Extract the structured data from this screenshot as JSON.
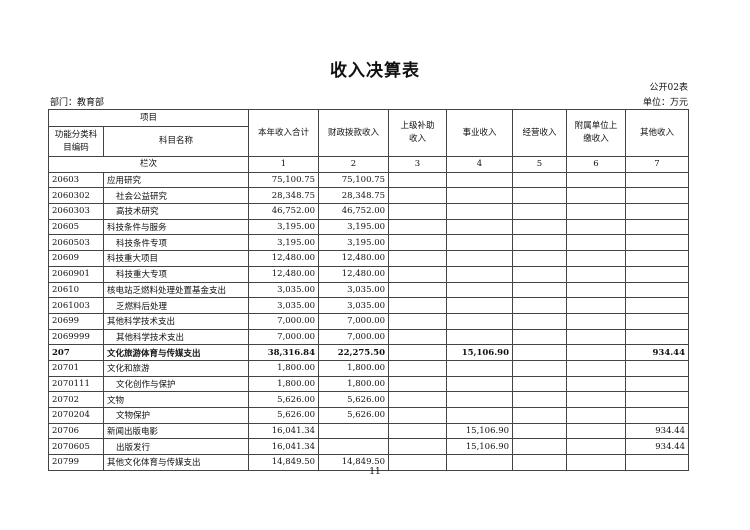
{
  "title": "收入决算表",
  "form_no": "公开02表",
  "department": "部门：教育部",
  "unit": "单位：万元",
  "header": {
    "project": "项目",
    "code": "功能分类科目编码",
    "name": "科目名称",
    "col_index": "栏次",
    "cols": [
      "本年收入合计",
      "财政拨款收入",
      "上级补助收入",
      "事业收入",
      "经营收入",
      "附属单位上缴收入",
      "其他收入"
    ],
    "nums": [
      "1",
      "2",
      "3",
      "4",
      "5",
      "6",
      "7"
    ]
  },
  "rows": [
    {
      "code": "20603",
      "name": "应用研究",
      "v": [
        "75,100.75",
        "75,100.75",
        "",
        "",
        "",
        "",
        ""
      ]
    },
    {
      "code": "2060302",
      "name": "社会公益研究",
      "indent": true,
      "v": [
        "28,348.75",
        "28,348.75",
        "",
        "",
        "",
        "",
        ""
      ]
    },
    {
      "code": "2060303",
      "name": "高技术研究",
      "indent": true,
      "v": [
        "46,752.00",
        "46,752.00",
        "",
        "",
        "",
        "",
        ""
      ]
    },
    {
      "code": "20605",
      "name": "科技条件与服务",
      "v": [
        "3,195.00",
        "3,195.00",
        "",
        "",
        "",
        "",
        ""
      ]
    },
    {
      "code": "2060503",
      "name": "科技条件专项",
      "indent": true,
      "v": [
        "3,195.00",
        "3,195.00",
        "",
        "",
        "",
        "",
        ""
      ]
    },
    {
      "code": "20609",
      "name": "科技重大项目",
      "v": [
        "12,480.00",
        "12,480.00",
        "",
        "",
        "",
        "",
        ""
      ]
    },
    {
      "code": "2060901",
      "name": "科技重大专项",
      "indent": true,
      "v": [
        "12,480.00",
        "12,480.00",
        "",
        "",
        "",
        "",
        ""
      ]
    },
    {
      "code": "20610",
      "name": "核电站乏燃料处理处置基金支出",
      "v": [
        "3,035.00",
        "3,035.00",
        "",
        "",
        "",
        "",
        ""
      ]
    },
    {
      "code": "2061003",
      "name": "乏燃料后处理",
      "indent": true,
      "v": [
        "3,035.00",
        "3,035.00",
        "",
        "",
        "",
        "",
        ""
      ]
    },
    {
      "code": "20699",
      "name": "其他科学技术支出",
      "v": [
        "7,000.00",
        "7,000.00",
        "",
        "",
        "",
        "",
        ""
      ]
    },
    {
      "code": "2069999",
      "name": "其他科学技术支出",
      "indent": true,
      "v": [
        "7,000.00",
        "7,000.00",
        "",
        "",
        "",
        "",
        ""
      ]
    },
    {
      "code": "207",
      "name": "文化旅游体育与传媒支出",
      "bold": true,
      "v": [
        "38,316.84",
        "22,275.50",
        "",
        "15,106.90",
        "",
        "",
        "934.44"
      ]
    },
    {
      "code": "20701",
      "name": "文化和旅游",
      "v": [
        "1,800.00",
        "1,800.00",
        "",
        "",
        "",
        "",
        ""
      ]
    },
    {
      "code": "2070111",
      "name": "文化创作与保护",
      "indent": true,
      "v": [
        "1,800.00",
        "1,800.00",
        "",
        "",
        "",
        "",
        ""
      ]
    },
    {
      "code": "20702",
      "name": "文物",
      "v": [
        "5,626.00",
        "5,626.00",
        "",
        "",
        "",
        "",
        ""
      ]
    },
    {
      "code": "2070204",
      "name": "文物保护",
      "indent": true,
      "v": [
        "5,626.00",
        "5,626.00",
        "",
        "",
        "",
        "",
        ""
      ]
    },
    {
      "code": "20706",
      "name": "新闻出版电影",
      "v": [
        "16,041.34",
        "",
        "",
        "15,106.90",
        "",
        "",
        "934.44"
      ]
    },
    {
      "code": "2070605",
      "name": "出版发行",
      "indent": true,
      "v": [
        "16,041.34",
        "",
        "",
        "15,106.90",
        "",
        "",
        "934.44"
      ]
    },
    {
      "code": "20799",
      "name": "其他文化体育与传媒支出",
      "v": [
        "14,849.50",
        "14,849.50",
        "",
        "",
        "",
        "",
        ""
      ]
    }
  ],
  "page_number": "11"
}
